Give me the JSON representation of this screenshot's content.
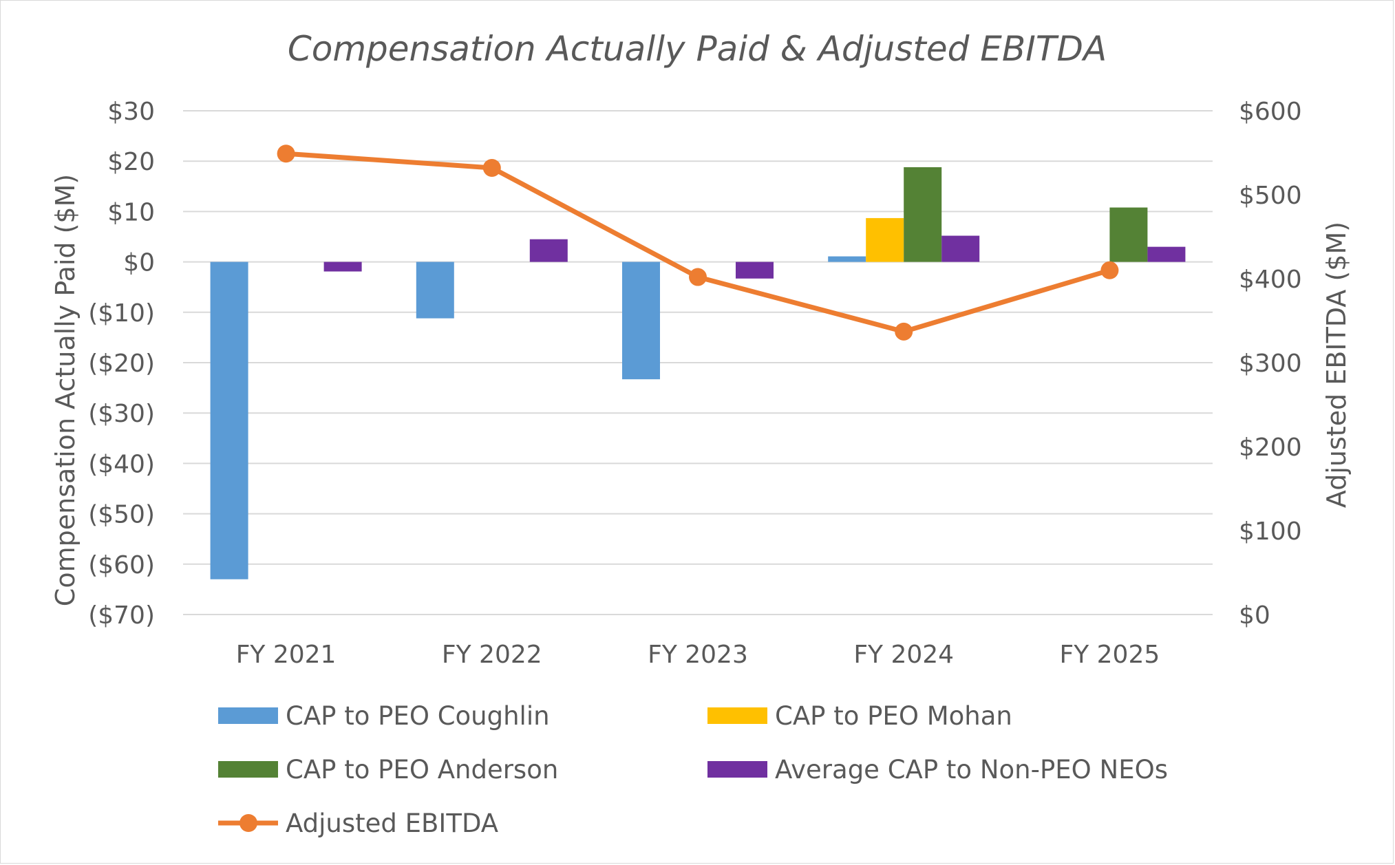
{
  "chart_data": {
    "type": "bar",
    "title": "Compensation Actually Paid & Adjusted EBITDA",
    "categories": [
      "FY 2021",
      "FY 2022",
      "FY 2023",
      "FY 2024",
      "FY 2025"
    ],
    "ylabel": "Compensation Actually Paid ($M)",
    "ylabel_right": "Adjusted EBITDA ($M)",
    "ylim": [
      -70,
      30
    ],
    "ylim_right": [
      0,
      600
    ],
    "yticks": [
      "$30",
      "$20",
      "$10",
      "$0",
      "($10)",
      "($20)",
      "($30)",
      "($40)",
      "($50)",
      "($60)",
      "($70)"
    ],
    "yticks_right": [
      "$600",
      "$500",
      "$400",
      "$300",
      "$200",
      "$100",
      "$0"
    ],
    "grid": true,
    "legend_position": "bottom",
    "series": [
      {
        "name": "CAP to PEO Coughlin",
        "kind": "bar",
        "axis": "left",
        "color": "#5b9bd5",
        "values": [
          -63,
          -11.2,
          -23.3,
          1.1,
          null
        ]
      },
      {
        "name": "CAP to PEO Mohan",
        "kind": "bar",
        "axis": "left",
        "color": "#ffc000",
        "values": [
          null,
          null,
          null,
          8.7,
          null
        ]
      },
      {
        "name": "CAP to PEO Anderson",
        "kind": "bar",
        "axis": "left",
        "color": "#548235",
        "values": [
          null,
          null,
          null,
          18.8,
          10.8
        ]
      },
      {
        "name": "Average CAP to Non-PEO NEOs",
        "kind": "bar",
        "axis": "left",
        "color": "#7030a0",
        "values": [
          -1.9,
          4.5,
          -3.3,
          5.2,
          3.0
        ]
      },
      {
        "name": "Adjusted EBITDA",
        "kind": "line",
        "axis": "right",
        "color": "#ed7d31",
        "values": [
          549,
          532,
          402,
          337,
          410
        ]
      }
    ]
  }
}
